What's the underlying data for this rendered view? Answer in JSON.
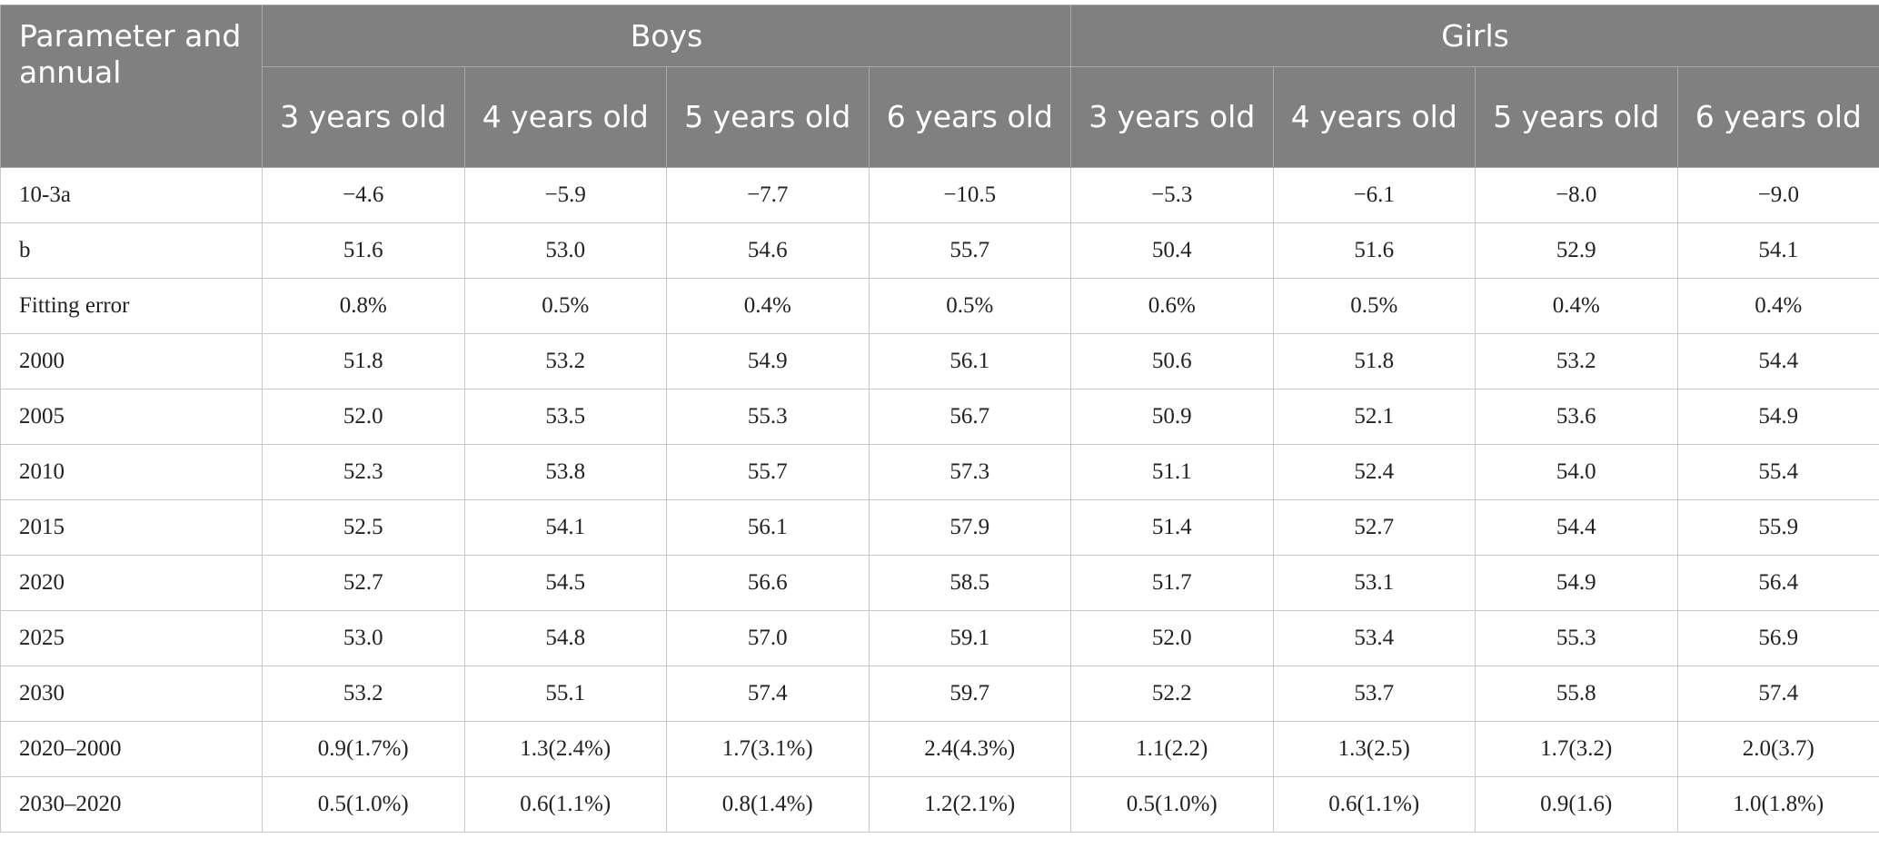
{
  "table": {
    "param_header": "Parameter and annual",
    "groups": [
      "Boys",
      "Girls"
    ],
    "ages": [
      "3 years old",
      "4 years old",
      "5 years old",
      "6 years old",
      "3 years old",
      "4 years old",
      "5 years old",
      "6 years old"
    ],
    "rows": [
      {
        "label": "10-3a",
        "values": [
          "−4.6",
          "−5.9",
          "−7.7",
          "−10.5",
          "−5.3",
          "−6.1",
          "−8.0",
          "−9.0"
        ]
      },
      {
        "label": "b",
        "values": [
          "51.6",
          "53.0",
          "54.6",
          "55.7",
          "50.4",
          "51.6",
          "52.9",
          "54.1"
        ]
      },
      {
        "label": "Fitting error",
        "values": [
          "0.8%",
          "0.5%",
          "0.4%",
          "0.5%",
          "0.6%",
          "0.5%",
          "0.4%",
          "0.4%"
        ]
      },
      {
        "label": "2000",
        "values": [
          "51.8",
          "53.2",
          "54.9",
          "56.1",
          "50.6",
          "51.8",
          "53.2",
          "54.4"
        ]
      },
      {
        "label": "2005",
        "values": [
          "52.0",
          "53.5",
          "55.3",
          "56.7",
          "50.9",
          "52.1",
          "53.6",
          "54.9"
        ]
      },
      {
        "label": "2010",
        "values": [
          "52.3",
          "53.8",
          "55.7",
          "57.3",
          "51.1",
          "52.4",
          "54.0",
          "55.4"
        ]
      },
      {
        "label": "2015",
        "values": [
          "52.5",
          "54.1",
          "56.1",
          "57.9",
          "51.4",
          "52.7",
          "54.4",
          "55.9"
        ]
      },
      {
        "label": "2020",
        "values": [
          "52.7",
          "54.5",
          "56.6",
          "58.5",
          "51.7",
          "53.1",
          "54.9",
          "56.4"
        ]
      },
      {
        "label": "2025",
        "values": [
          "53.0",
          "54.8",
          "57.0",
          "59.1",
          "52.0",
          "53.4",
          "55.3",
          "56.9"
        ]
      },
      {
        "label": "2030",
        "values": [
          "53.2",
          "55.1",
          "57.4",
          "59.7",
          "52.2",
          "53.7",
          "55.8",
          "57.4"
        ]
      },
      {
        "label": "2020–2000",
        "values": [
          "0.9(1.7%)",
          "1.3(2.4%)",
          "1.7(3.1%)",
          "2.4(4.3%)",
          "1.1(2.2)",
          "1.3(2.5)",
          "1.7(3.2)",
          "2.0(3.7)"
        ]
      },
      {
        "label": "2030–2020",
        "values": [
          "0.5(1.0%)",
          "0.6(1.1%)",
          "0.8(1.4%)",
          "1.2(2.1%)",
          "0.5(1.0%)",
          "0.6(1.1%)",
          "0.9(1.6)",
          "1.0(1.8%)"
        ]
      }
    ]
  }
}
